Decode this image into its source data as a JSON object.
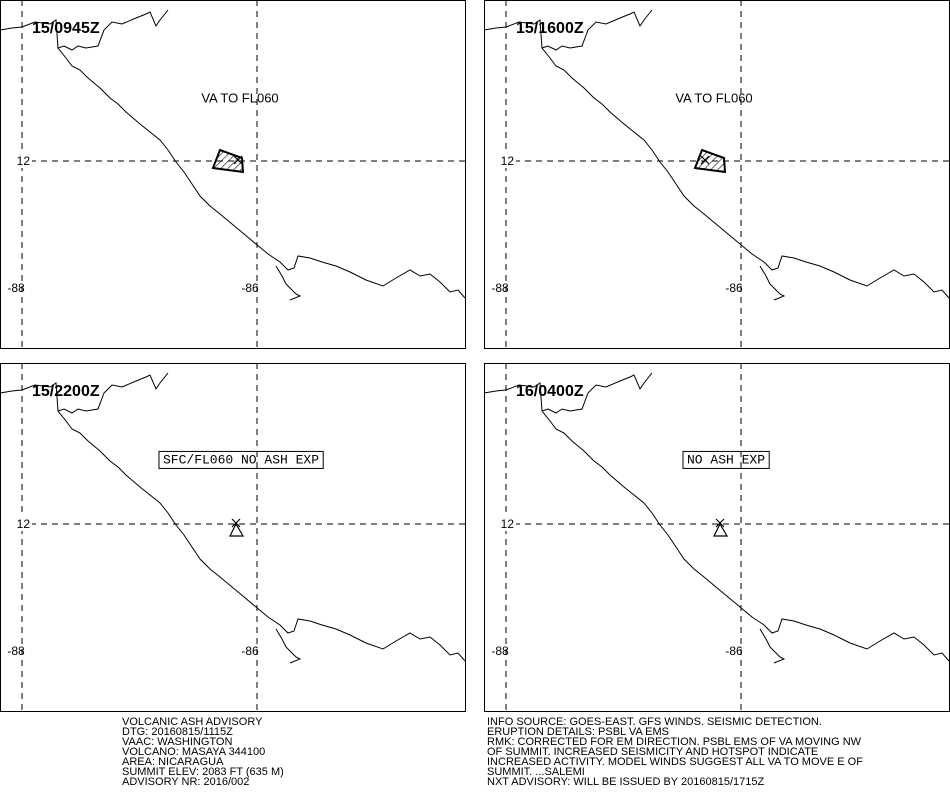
{
  "panels": [
    {
      "time": "15/0945Z",
      "label": "VA TO FL060"
    },
    {
      "time": "15/1600Z",
      "label": "VA TO FL060"
    },
    {
      "time": "15/2200Z",
      "label": "SFC/FL060 NO ASH EXP"
    },
    {
      "time": "16/0400Z",
      "label": "NO ASH EXP"
    }
  ],
  "grid_labels": {
    "lat": "12",
    "lon_west": "-88",
    "lon_east": "-86"
  },
  "advisory_left": [
    "VOLCANIC ASH ADVISORY",
    "DTG: 20160815/1115Z",
    "VAAC: WASHINGTON",
    "VOLCANO: MASAYA 344100",
    "AREA: NICARAGUA",
    "SUMMIT ELEV: 2083 FT (635 M)",
    "ADVISORY NR: 2016/002"
  ],
  "advisory_right": [
    "INFO SOURCE: GOES-EAST. GFS WINDS. SEISMIC DETECTION.",
    "ERUPTION DETAILS: PSBL VA EMS",
    "RMK: CORRECTED FOR EM DIRECTION. PSBL EMS OF VA MOVING NW",
    "OF SUMMIT. INCREASED SEISMICITY AND HOTSPOT INDICATE",
    "INCREASED ACTIVITY. MODEL WINDS SUGGEST ALL VA TO MOVE E OF",
    "SUMMIT. ...SALEMI",
    "NXT ADVISORY: WILL BE ISSUED BY 20160815/1715Z"
  ]
}
